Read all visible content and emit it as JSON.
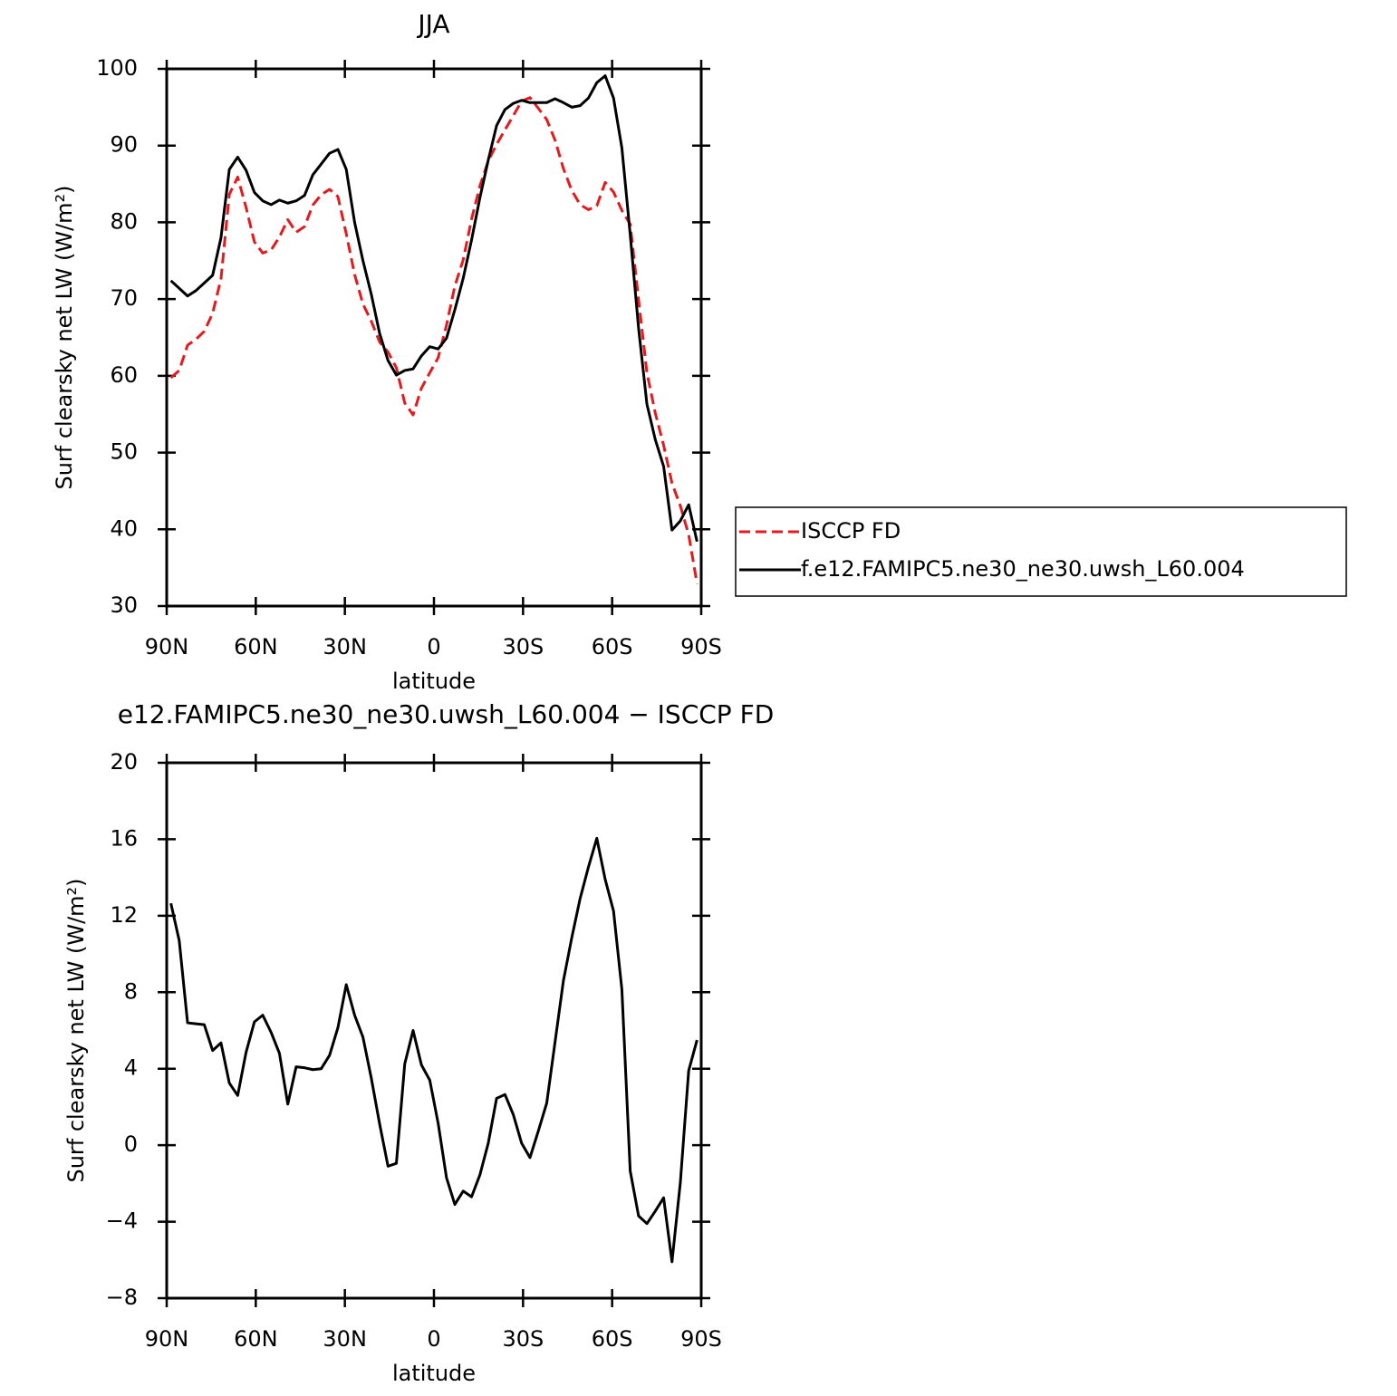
{
  "chart_data": [
    {
      "type": "line",
      "title": "JJA",
      "xlabel": "latitude",
      "ylabel": "Surf clearsky net LW (W/m²)",
      "x": [
        88.59,
        85.78,
        82.97,
        80.16,
        77.34,
        74.53,
        71.72,
        68.91,
        66.09,
        63.28,
        60.47,
        57.66,
        54.84,
        52.03,
        49.22,
        46.41,
        43.59,
        40.78,
        37.97,
        35.16,
        32.34,
        29.53,
        26.72,
        23.91,
        21.09,
        18.28,
        15.47,
        12.66,
        9.84,
        7.03,
        4.22,
        1.41,
        -1.41,
        -4.22,
        -7.03,
        -9.84,
        -12.66,
        -15.47,
        -18.28,
        -21.09,
        -23.91,
        -26.72,
        -29.53,
        -32.34,
        -35.16,
        -37.97,
        -40.78,
        -43.59,
        -46.41,
        -49.22,
        -52.03,
        -54.84,
        -57.66,
        -60.47,
        -63.28,
        -66.09,
        -68.91,
        -71.72,
        -74.53,
        -77.34,
        -80.16,
        -82.97,
        -85.78,
        -88.59
      ],
      "series": [
        {
          "name": "ISCCP FD",
          "color": "#e41a1c",
          "line_style": "dashed",
          "values": [
            59.75,
            60.7,
            64.0,
            64.75,
            65.8,
            68.15,
            72.65,
            83.65,
            85.9,
            81.95,
            77.45,
            76.0,
            76.4,
            78.1,
            80.35,
            78.7,
            79.45,
            82.25,
            83.6,
            84.3,
            83.35,
            78.5,
            73.2,
            69.35,
            67.1,
            64.4,
            63.1,
            61.05,
            56.45,
            54.9,
            58.4,
            60.4,
            62.35,
            66.6,
            71.7,
            75.1,
            80.4,
            84.75,
            88.0,
            90.15,
            92.05,
            93.9,
            95.8,
            96.25,
            94.85,
            93.4,
            90.7,
            87.0,
            84.15,
            82.3,
            81.65,
            82.15,
            85.2,
            83.95,
            81.55,
            79.75,
            69.9,
            60.4,
            55.15,
            50.95,
            46.0,
            43.05,
            39.3,
            32.9
          ]
        },
        {
          "name": "f.e12.FAMIPC5.ne30_ne30.uwsh_L60.004",
          "color": "#000000",
          "line_style": "solid",
          "values": [
            72.4,
            71.4,
            70.4,
            71.1,
            72.1,
            73.1,
            78.0,
            86.9,
            88.5,
            86.8,
            83.9,
            82.8,
            82.3,
            82.9,
            82.5,
            82.8,
            83.5,
            86.2,
            87.6,
            89.0,
            89.5,
            86.9,
            80.0,
            75.0,
            70.6,
            65.5,
            62.0,
            60.1,
            60.7,
            60.9,
            62.6,
            63.8,
            63.5,
            64.9,
            68.6,
            72.7,
            77.7,
            83.2,
            88.1,
            92.6,
            94.7,
            95.5,
            95.9,
            95.6,
            95.6,
            95.6,
            96.1,
            95.6,
            95.0,
            95.2,
            96.2,
            98.2,
            99.1,
            96.2,
            89.7,
            78.4,
            66.2,
            56.3,
            51.7,
            48.2,
            39.9,
            41.1,
            43.2,
            38.4
          ]
        }
      ],
      "xlim": [
        90,
        -90
      ],
      "xticks": [
        {
          "value": 90,
          "label": "90N"
        },
        {
          "value": 60,
          "label": "60N"
        },
        {
          "value": 30,
          "label": "30N"
        },
        0,
        {
          "value": -30,
          "label": "30S"
        },
        {
          "value": -60,
          "label": "60S"
        },
        {
          "value": -90,
          "label": "90S"
        }
      ],
      "ylim": [
        30,
        100
      ],
      "yticks": [
        30,
        40,
        50,
        60,
        70,
        80,
        90,
        100
      ],
      "legend": "right"
    },
    {
      "type": "line",
      "title": "e12.FAMIPC5.ne30_ne30.uwsh_L60.004 − ISCCP FD",
      "xlabel": "latitude",
      "ylabel": "Surf clearsky net LW (W/m²)",
      "x": [
        88.59,
        85.78,
        82.97,
        80.16,
        77.34,
        74.53,
        71.72,
        68.91,
        66.09,
        63.28,
        60.47,
        57.66,
        54.84,
        52.03,
        49.22,
        46.41,
        43.59,
        40.78,
        37.97,
        35.16,
        32.34,
        29.53,
        26.72,
        23.91,
        21.09,
        18.28,
        15.47,
        12.66,
        9.84,
        7.03,
        4.22,
        1.41,
        -1.41,
        -4.22,
        -7.03,
        -9.84,
        -12.66,
        -15.47,
        -18.28,
        -21.09,
        -23.91,
        -26.72,
        -29.53,
        -32.34,
        -35.16,
        -37.97,
        -40.78,
        -43.59,
        -46.41,
        -49.22,
        -52.03,
        -54.84,
        -57.66,
        -60.47,
        -63.28,
        -66.09,
        -68.91,
        -71.72,
        -74.53,
        -77.34,
        -80.16,
        -82.97,
        -85.78,
        -88.59
      ],
      "series": [
        {
          "color": "#000000",
          "line_style": "solid",
          "values": [
            12.65,
            10.7,
            6.4,
            6.35,
            6.3,
            4.95,
            5.35,
            3.25,
            2.6,
            4.85,
            6.45,
            6.8,
            5.9,
            4.8,
            2.15,
            4.1,
            4.05,
            3.95,
            4.0,
            4.7,
            6.15,
            8.4,
            6.8,
            5.65,
            3.5,
            1.1,
            -1.1,
            -0.95,
            4.25,
            6.0,
            4.2,
            3.4,
            1.15,
            -1.7,
            -3.1,
            -2.4,
            -2.7,
            -1.55,
            0.1,
            2.45,
            2.65,
            1.6,
            0.1,
            -0.65,
            0.75,
            2.2,
            5.4,
            8.6,
            10.85,
            12.9,
            14.55,
            16.05,
            13.9,
            12.25,
            8.15,
            -1.35,
            -3.7,
            -4.1,
            -3.45,
            -2.75,
            -6.1,
            -1.95,
            3.9,
            5.5
          ]
        }
      ],
      "xlim": [
        90,
        -90
      ],
      "xticks": [
        {
          "value": 90,
          "label": "90N"
        },
        {
          "value": 60,
          "label": "60N"
        },
        {
          "value": 30,
          "label": "30N"
        },
        0,
        {
          "value": -30,
          "label": "30S"
        },
        {
          "value": -60,
          "label": "60S"
        },
        {
          "value": -90,
          "label": "90S"
        }
      ],
      "ylim": [
        -8,
        20
      ],
      "yticks": [
        {
          "value": -8,
          "label": "−8"
        },
        {
          "value": -4,
          "label": "−4"
        },
        0,
        4,
        8,
        12,
        16,
        20
      ]
    }
  ]
}
